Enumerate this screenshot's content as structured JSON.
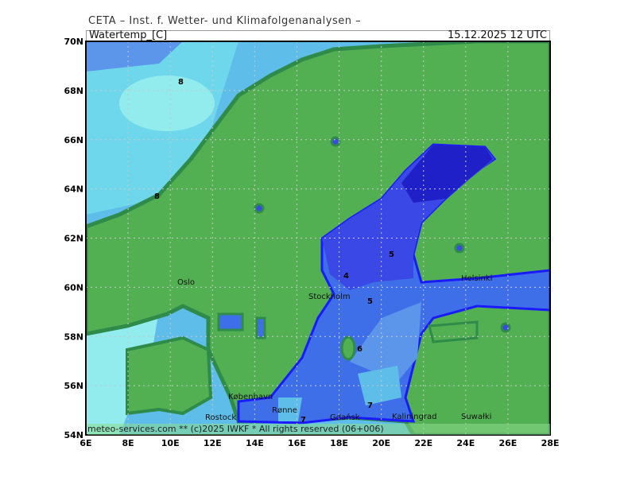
{
  "header": {
    "institute": "CETA – Inst. f. Wetter- und Klimafolgenanalysen –"
  },
  "title": {
    "parameter": "Watertemp_[C]",
    "datetime": "15.12.2025 12 UTC"
  },
  "footer": {
    "copyright": "meteo-services.com ** (c)2025 IWKF * All rights reserved (06+006)"
  },
  "map": {
    "lat_ticks": [
      "70N",
      "68N",
      "66N",
      "64N",
      "62N",
      "60N",
      "58N",
      "56N",
      "54N"
    ],
    "lon_ticks": [
      "6E",
      "8E",
      "10E",
      "12E",
      "14E",
      "16E",
      "18E",
      "20E",
      "22E",
      "24E",
      "26E",
      "28E"
    ],
    "cities": [
      "Oslo",
      "Stockholm",
      "Helsinki",
      "København",
      "Rønne",
      "Kaliningrad",
      "Rostock",
      "Gdańsk",
      "Suwałki"
    ],
    "contour_labels": [
      "8",
      "8",
      "4",
      "5",
      "5",
      "6",
      "7",
      "7"
    ],
    "colors": {
      "land": "#52b052",
      "coast": "#2e8b4a",
      "t4": "#2020c8",
      "t5": "#3a48e6",
      "t6": "#3f6fe8",
      "t7": "#5b96ea",
      "t8": "#5ebde9",
      "t9": "#6fd7eb",
      "t10": "#92ecee"
    },
    "grid": true
  }
}
